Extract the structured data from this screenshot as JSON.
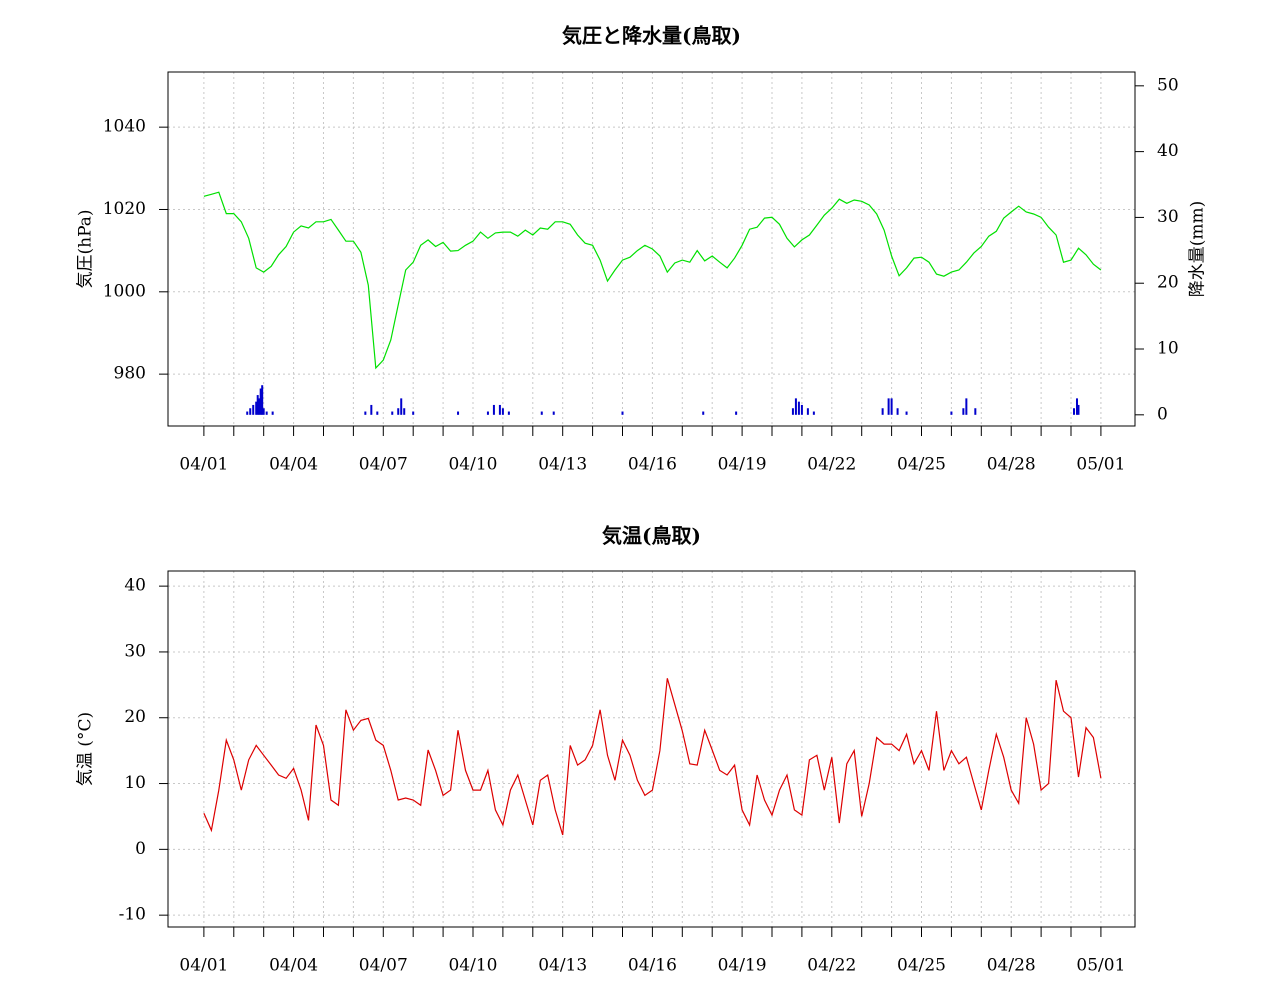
{
  "chart_data": [
    {
      "type": "line",
      "title": "気圧と降水量(鳥取)",
      "ylabel": "気圧(hPa)",
      "y2label": "降水量(mm)",
      "xlim": [
        -1.2,
        31.14
      ],
      "xticks": [
        {
          "value": 0,
          "label": "04/01"
        },
        {
          "value": 3,
          "label": "04/04"
        },
        {
          "value": 6,
          "label": "04/07"
        },
        {
          "value": 9,
          "label": "04/10"
        },
        {
          "value": 12,
          "label": "04/13"
        },
        {
          "value": 15,
          "label": "04/16"
        },
        {
          "value": 18,
          "label": "04/19"
        },
        {
          "value": 21,
          "label": "04/22"
        },
        {
          "value": 24,
          "label": "04/25"
        },
        {
          "value": 27,
          "label": "04/28"
        },
        {
          "value": 30,
          "label": "05/01"
        }
      ],
      "xminorticks": [
        1,
        2,
        4,
        5,
        7,
        8,
        10,
        11,
        13,
        14,
        16,
        17,
        19,
        20,
        22,
        23,
        25,
        26,
        28,
        29
      ],
      "ylim": [
        967.4,
        1053.4
      ],
      "yticks": [
        980,
        1000,
        1020,
        1040
      ],
      "y2lim": [
        -1.7,
        52.1
      ],
      "y2ticks": [
        0,
        10,
        20,
        30,
        40,
        50
      ],
      "grid": true,
      "series": [
        {
          "type": "line",
          "color": "#00e000",
          "x": [
            0,
            0.25,
            0.5,
            0.75,
            1,
            1.25,
            1.5,
            1.75,
            2,
            2.25,
            2.5,
            2.75,
            3,
            3.25,
            3.5,
            3.75,
            4,
            4.25,
            4.5,
            4.75,
            5,
            5.25,
            5.5,
            5.75,
            6,
            6.25,
            6.5,
            6.75,
            7,
            7.25,
            7.5,
            7.75,
            8,
            8.25,
            8.5,
            8.75,
            9,
            9.25,
            9.5,
            9.75,
            10,
            10.25,
            10.5,
            10.75,
            11,
            11.25,
            11.5,
            11.75,
            12,
            12.25,
            12.5,
            12.75,
            13,
            13.25,
            13.5,
            13.75,
            14,
            14.25,
            14.5,
            14.75,
            15,
            15.25,
            15.5,
            15.75,
            16,
            16.25,
            16.5,
            16.75,
            17,
            17.25,
            17.5,
            17.75,
            18,
            18.25,
            18.5,
            18.75,
            19,
            19.25,
            19.5,
            19.75,
            20,
            20.25,
            20.5,
            20.75,
            21,
            21.25,
            21.5,
            21.75,
            22,
            22.25,
            22.5,
            22.75,
            23,
            23.25,
            23.5,
            23.75,
            24,
            24.25,
            24.5,
            24.75,
            25,
            25.25,
            25.5,
            25.75,
            26,
            26.25,
            26.5,
            26.75,
            27,
            27.25,
            27.5,
            27.75,
            28,
            28.25,
            28.5,
            28.75,
            29,
            29.25,
            29.5,
            29.75,
            30
          ],
          "values": [
            1023.2,
            1023.7,
            1024.2,
            1019,
            1019,
            1017,
            1013,
            1005.8,
            1004.8,
            1006.2,
            1009,
            1011,
            1014.5,
            1016,
            1015.5,
            1017,
            1017,
            1017.6,
            1015,
            1012.3,
            1012.3,
            1009.6,
            1001.6,
            981.5,
            983.4,
            988.3,
            996.8,
            1005.3,
            1007.2,
            1011.3,
            1012.6,
            1011,
            1012,
            1009.9,
            1010,
            1011.3,
            1012.3,
            1014.5,
            1013,
            1014.3,
            1014.5,
            1014.5,
            1013.5,
            1015,
            1013.8,
            1015.5,
            1015.2,
            1017,
            1017,
            1016.4,
            1013.8,
            1011.8,
            1011.3,
            1007.7,
            1002.6,
            1005.3,
            1007.7,
            1008.4,
            1010,
            1011.3,
            1010.4,
            1008.7,
            1004.8,
            1007,
            1007.7,
            1007.2,
            1010,
            1007.5,
            1008.7,
            1007.2,
            1005.8,
            1008.2,
            1011.3,
            1015.2,
            1015.7,
            1017.9,
            1018.1,
            1016.4,
            1013,
            1010.9,
            1012.6,
            1013.8,
            1016.2,
            1018.6,
            1020.3,
            1022.5,
            1021.5,
            1022.3,
            1022,
            1021.1,
            1018.9,
            1015,
            1008.7,
            1003.9,
            1005.8,
            1008.2,
            1008.4,
            1007.2,
            1004.3,
            1003.8,
            1004.8,
            1005.3,
            1007.2,
            1009.4,
            1011,
            1013.5,
            1014.7,
            1017.9,
            1019.4,
            1020.8,
            1019.4,
            1018.9,
            1018.1,
            1015.7,
            1013.8,
            1007.2,
            1007.7,
            1010.6,
            1009,
            1006.7,
            1005.3
          ]
        },
        {
          "type": "bar",
          "axis": "y2",
          "color": "#0000cc",
          "x": [
            1.45,
            1.55,
            1.65,
            1.75,
            1.8,
            1.85,
            1.9,
            1.95,
            2.0,
            2.1,
            2.3,
            5.4,
            5.6,
            5.8,
            6.3,
            6.5,
            6.6,
            6.7,
            7.0,
            8.5,
            9.5,
            9.7,
            9.9,
            10.0,
            10.2,
            11.3,
            11.7,
            14.0,
            16.7,
            17.8,
            19.7,
            19.8,
            19.9,
            20.0,
            20.2,
            20.4,
            22.7,
            22.9,
            23.0,
            23.2,
            23.5,
            25.0,
            25.4,
            25.5,
            25.8,
            29.1,
            29.2,
            29.25
          ],
          "values": [
            0.5,
            1,
            1.5,
            2,
            3,
            2.5,
            4,
            4.5,
            1,
            0.5,
            0.5,
            0.5,
            1.5,
            0.5,
            0.5,
            1,
            2.5,
            1,
            0.5,
            0.5,
            0.5,
            1.5,
            1.5,
            1,
            0.5,
            0.5,
            0.5,
            0.5,
            0.5,
            0.5,
            1,
            2.5,
            2,
            1.5,
            1,
            0.5,
            1,
            2.5,
            2.5,
            1,
            0.5,
            0.5,
            1,
            2.5,
            1,
            1,
            2.5,
            1.5
          ]
        }
      ]
    },
    {
      "type": "line",
      "title": "気温(鳥取)",
      "ylabel": "気温 (°C)",
      "xlim": [
        -1.2,
        31.14
      ],
      "xticks": [
        {
          "value": 0,
          "label": "04/01"
        },
        {
          "value": 3,
          "label": "04/04"
        },
        {
          "value": 6,
          "label": "04/07"
        },
        {
          "value": 9,
          "label": "04/10"
        },
        {
          "value": 12,
          "label": "04/13"
        },
        {
          "value": 15,
          "label": "04/16"
        },
        {
          "value": 18,
          "label": "04/19"
        },
        {
          "value": 21,
          "label": "04/22"
        },
        {
          "value": 24,
          "label": "04/25"
        },
        {
          "value": 27,
          "label": "04/28"
        },
        {
          "value": 30,
          "label": "05/01"
        }
      ],
      "xminorticks": [
        1,
        2,
        4,
        5,
        7,
        8,
        10,
        11,
        13,
        14,
        16,
        17,
        19,
        20,
        22,
        23,
        25,
        26,
        28,
        29
      ],
      "ylim": [
        -11.8,
        42.3
      ],
      "yticks": [
        -10,
        0,
        10,
        20,
        30,
        40
      ],
      "grid": true,
      "series": [
        {
          "type": "line",
          "color": "#dd0000",
          "x": [
            0,
            0.25,
            0.5,
            0.75,
            1,
            1.25,
            1.5,
            1.75,
            2,
            2.25,
            2.5,
            2.75,
            3,
            3.25,
            3.5,
            3.75,
            4,
            4.25,
            4.5,
            4.75,
            5,
            5.25,
            5.5,
            5.75,
            6,
            6.25,
            6.5,
            6.75,
            7,
            7.25,
            7.5,
            7.75,
            8,
            8.25,
            8.5,
            8.75,
            9,
            9.25,
            9.5,
            9.75,
            10,
            10.25,
            10.5,
            10.75,
            11,
            11.25,
            11.5,
            11.75,
            12,
            12.25,
            12.5,
            12.75,
            13,
            13.25,
            13.5,
            13.75,
            14,
            14.25,
            14.5,
            14.75,
            15,
            15.25,
            15.5,
            15.75,
            16,
            16.25,
            16.5,
            16.75,
            17,
            17.25,
            17.5,
            17.75,
            18,
            18.25,
            18.5,
            18.75,
            19,
            19.25,
            19.5,
            19.75,
            20,
            20.25,
            20.5,
            20.75,
            21,
            21.25,
            21.5,
            21.75,
            22,
            22.25,
            22.5,
            22.75,
            23,
            23.25,
            23.5,
            23.75,
            24,
            24.25,
            24.5,
            24.75,
            25,
            25.25,
            25.5,
            25.75,
            26,
            26.25,
            26.5,
            26.75,
            27,
            27.25,
            27.5,
            27.75,
            28,
            28.25,
            28.5,
            28.75,
            29,
            29.25,
            29.5,
            29.75,
            30
          ],
          "values": [
            5.5,
            2.9,
            9,
            16.6,
            13.6,
            9,
            13.6,
            15.8,
            14.3,
            12.8,
            11.3,
            10.8,
            12.3,
            9,
            4.4,
            18.9,
            15.8,
            7.5,
            6.7,
            21.2,
            18.1,
            19.6,
            19.9,
            16.6,
            15.8,
            12,
            7.5,
            7.8,
            7.5,
            6.7,
            15.1,
            12,
            8.2,
            9,
            18.1,
            12,
            9,
            9,
            12,
            6,
            3.7,
            9,
            11.3,
            7.5,
            3.7,
            10.5,
            11.3,
            6,
            2.2,
            15.8,
            12.8,
            13.6,
            15.8,
            21.2,
            14.3,
            10.5,
            16.6,
            14.3,
            10.5,
            8.2,
            9,
            15,
            26,
            22,
            18,
            13,
            12.8,
            18.1,
            15.1,
            12,
            11.3,
            12.8,
            6,
            3.7,
            11.3,
            7.5,
            5.2,
            9,
            11.3,
            6,
            5.2,
            13.6,
            14.3,
            9,
            14,
            4,
            13,
            15,
            5,
            10,
            17,
            16,
            16,
            15,
            17.5,
            13,
            15,
            12,
            21,
            12,
            15,
            13,
            14,
            10,
            6,
            12,
            17.5,
            14,
            9,
            7,
            20,
            16,
            9,
            10,
            25.7,
            21,
            20,
            11,
            18.5,
            17,
            10.8
          ]
        }
      ]
    }
  ]
}
